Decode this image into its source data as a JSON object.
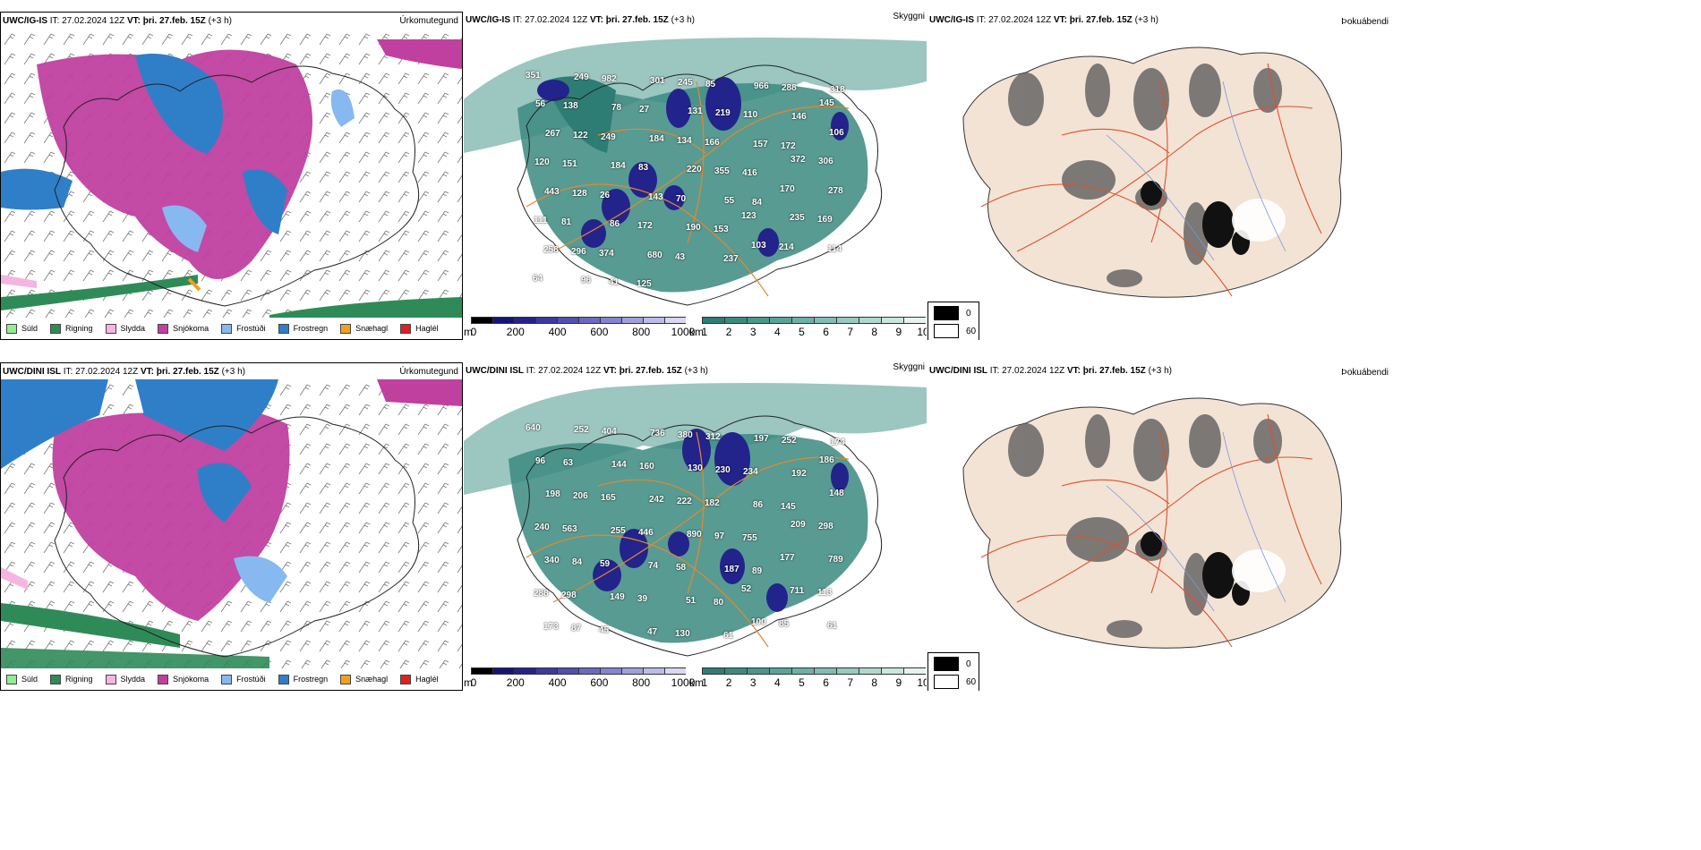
{
  "rows": [
    {
      "model": "UWC/IG-IS",
      "it_label": "IT:",
      "it_value": "27.02.2024 12Z",
      "vt_label": "VT:",
      "vt_value": "þri. 27.feb. 15Z",
      "offset": "(+3 h)"
    },
    {
      "model": "UWC/DINI ISL",
      "it_label": "IT:",
      "it_value": "27.02.2024 12Z",
      "vt_label": "VT:",
      "vt_value": "þri. 27.feb. 15Z",
      "offset": "(+3 h)"
    }
  ],
  "panel_titles": {
    "precip": "Úrkomutegund",
    "visibility": "Skyggni",
    "fog": "Þokuábendi"
  },
  "precip_legend": [
    {
      "label": "Súld",
      "color": "#90ee90"
    },
    {
      "label": "Rigning",
      "color": "#2e8b57"
    },
    {
      "label": "Slydda",
      "color": "#f4b6e0"
    },
    {
      "label": "Snjókoma",
      "color": "#c040a0"
    },
    {
      "label": "Frostúði",
      "color": "#87b8f0"
    },
    {
      "label": "Frostregn",
      "color": "#2f7fc8"
    },
    {
      "label": "Snæhagl",
      "color": "#f0a020"
    },
    {
      "label": "Haglél",
      "color": "#e02020"
    }
  ],
  "vis_colorbar_m": {
    "unit": "m",
    "ticks": [
      "0",
      "200",
      "400",
      "600",
      "800",
      "1000"
    ],
    "colors": [
      "#000000",
      "#141478",
      "#23238c",
      "#3a3aa0",
      "#5050b0",
      "#6a6ac0",
      "#8484d0",
      "#a0a0dc",
      "#bcbce8",
      "#d8d8f4"
    ]
  },
  "vis_colorbar_km": {
    "unit": "km",
    "ticks": [
      "1",
      "2",
      "3",
      "4",
      "5",
      "6",
      "7",
      "8",
      "9",
      "10"
    ],
    "colors": [
      "#2e7d74",
      "#3b8a80",
      "#4a978c",
      "#5ba398",
      "#6eb0a5",
      "#82bdb2",
      "#98cac0",
      "#b0d8cf",
      "#cae6df",
      "#e6f3f0"
    ]
  },
  "fog_legend": {
    "high_value": "0",
    "low_value": "60"
  },
  "vis_labels_top": [
    "351",
    "249",
    "982",
    "301",
    "245",
    "85",
    "966",
    "288",
    "318",
    "56",
    "138",
    "78",
    "27",
    "131",
    "219",
    "110",
    "146",
    "145",
    "267",
    "122",
    "249",
    "184",
    "134",
    "166",
    "157",
    "172",
    "106",
    "120",
    "151",
    "184",
    "83",
    "220",
    "355",
    "416",
    "372",
    "306",
    "443",
    "128",
    "26",
    "143",
    "70",
    "55",
    "84",
    "170",
    "278",
    "111",
    "81",
    "86",
    "172",
    "190",
    "153",
    "123",
    "235",
    "169",
    "258",
    "296",
    "374",
    "680",
    "43",
    "237",
    "103",
    "214",
    "114",
    "64",
    "96",
    "41",
    "125"
  ],
  "vis_labels_bottom": [
    "640",
    "252",
    "404",
    "736",
    "380",
    "312",
    "197",
    "252",
    "174",
    "96",
    "63",
    "144",
    "160",
    "130",
    "230",
    "234",
    "192",
    "186",
    "198",
    "206",
    "165",
    "242",
    "222",
    "182",
    "86",
    "145",
    "148",
    "240",
    "563",
    "255",
    "446",
    "890",
    "97",
    "755",
    "209",
    "298",
    "340",
    "84",
    "59",
    "74",
    "58",
    "187",
    "89",
    "177",
    "789",
    "288",
    "298",
    "149",
    "39",
    "51",
    "80",
    "52",
    "711",
    "113",
    "173",
    "87",
    "45",
    "47",
    "130",
    "61",
    "100",
    "85",
    "61"
  ]
}
